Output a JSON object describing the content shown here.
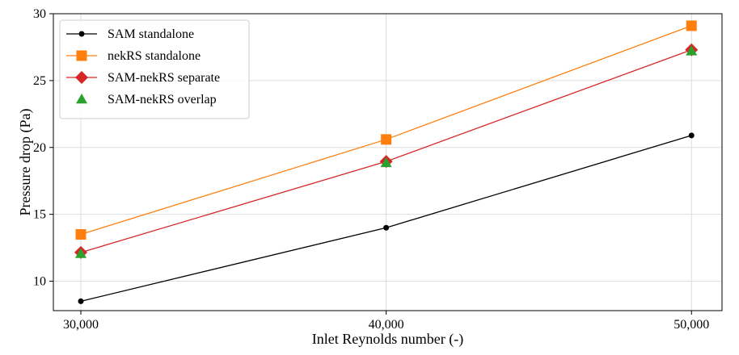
{
  "chart_data": {
    "type": "line",
    "xlabel": "Inlet Reynolds number (-)",
    "ylabel": "Pressure drop (Pa)",
    "x": [
      30000,
      40000,
      50000
    ],
    "x_tick_labels": [
      "30,000",
      "40,000",
      "50,000"
    ],
    "y_ticks": [
      10,
      15,
      20,
      25,
      30
    ],
    "y_tick_labels": [
      "10",
      "15",
      "20",
      "25",
      "30"
    ],
    "xlim": [
      29100,
      51000
    ],
    "ylim": [
      7.8,
      30
    ],
    "grid": true,
    "legend_position": "top-left",
    "series": [
      {
        "name": "SAM standalone",
        "values": [
          8.5,
          14.0,
          20.9
        ],
        "color": "#000000",
        "marker": "circle",
        "line": true
      },
      {
        "name": "nekRS standalone",
        "values": [
          13.5,
          20.6,
          29.1
        ],
        "color": "#ff7f0e",
        "marker": "square",
        "line": true
      },
      {
        "name": "SAM-nekRS separate",
        "values": [
          12.15,
          18.95,
          27.3
        ],
        "color": "#d62728",
        "marker": "diamond",
        "line": true
      },
      {
        "name": "SAM-nekRS overlap",
        "values": [
          12.05,
          18.85,
          27.2
        ],
        "color": "#2ca02c",
        "marker": "triangle",
        "line": false
      }
    ]
  }
}
